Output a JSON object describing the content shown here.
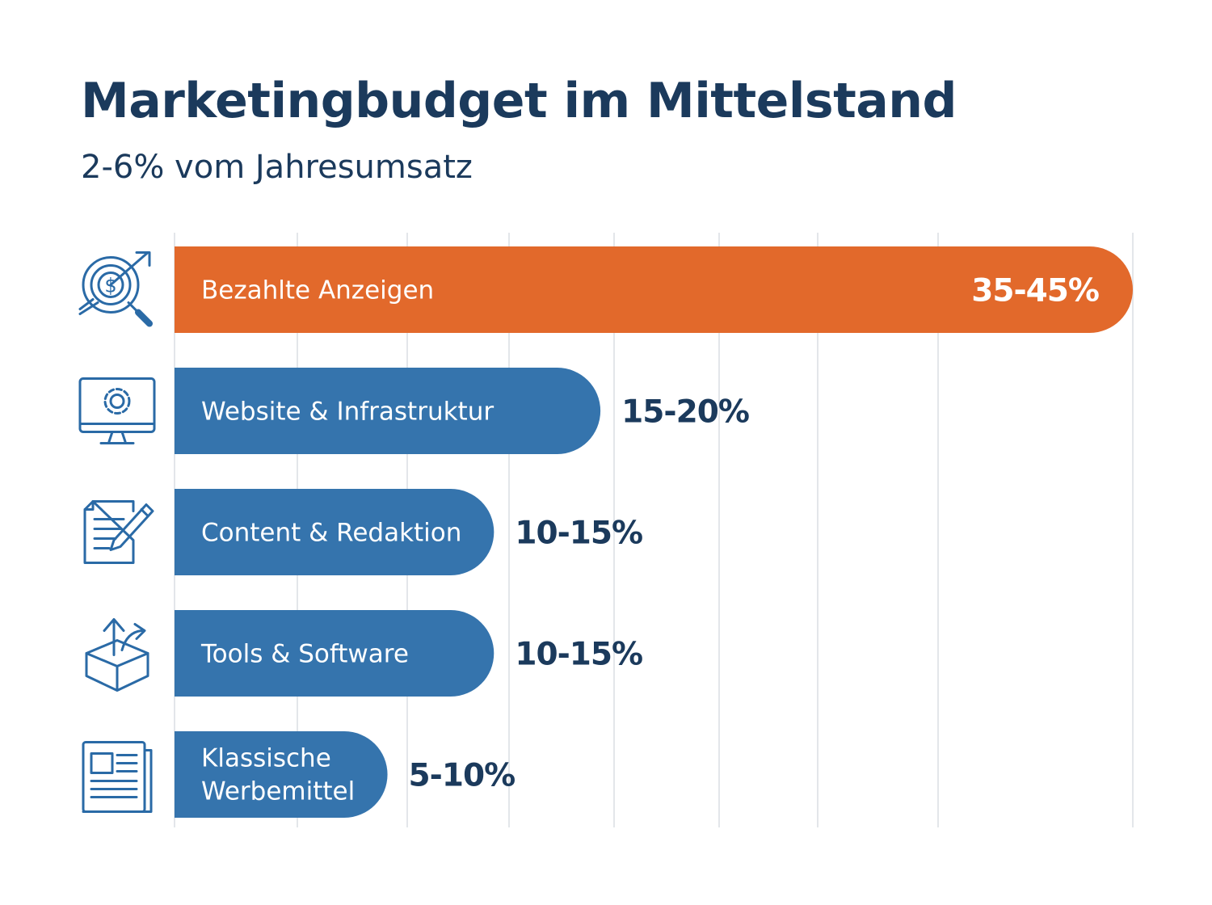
{
  "title": "Marketingbudget im Mittelstand",
  "subtitle": "2-6% vom Jahresumsatz",
  "colors": {
    "title": "#1b3a5c",
    "highlight_bar": "#e2692b",
    "bar": "#3574ad",
    "value_dark": "#1b3a5c",
    "gridline": "#e3e6ea",
    "icon": "#2a6aa6"
  },
  "chart_data": {
    "type": "bar",
    "orientation": "horizontal",
    "title": "Marketingbudget im Mittelstand",
    "subtitle": "2-6% vom Jahresumsatz",
    "categories": [
      "Bezahlte Anzeigen",
      "Website & Infrastruktur",
      "Content & Redaktion",
      "Tools & Software",
      "Klassische Werbemittel"
    ],
    "ranges": [
      [
        35,
        45
      ],
      [
        15,
        20
      ],
      [
        10,
        15
      ],
      [
        10,
        15
      ],
      [
        5,
        10
      ]
    ],
    "value_labels": [
      "35-45%",
      "15-20%",
      "10-15%",
      "10-15%",
      "5-10%"
    ],
    "category_icons": [
      "target-dollar-icon",
      "monitor-gear-icon",
      "document-pen-icon",
      "box-arrows-icon",
      "newspaper-icon"
    ],
    "highlight_index": 0,
    "xlim": [
      0,
      45
    ],
    "xlabel": "",
    "ylabel": "",
    "grid": true,
    "legend": "none"
  }
}
